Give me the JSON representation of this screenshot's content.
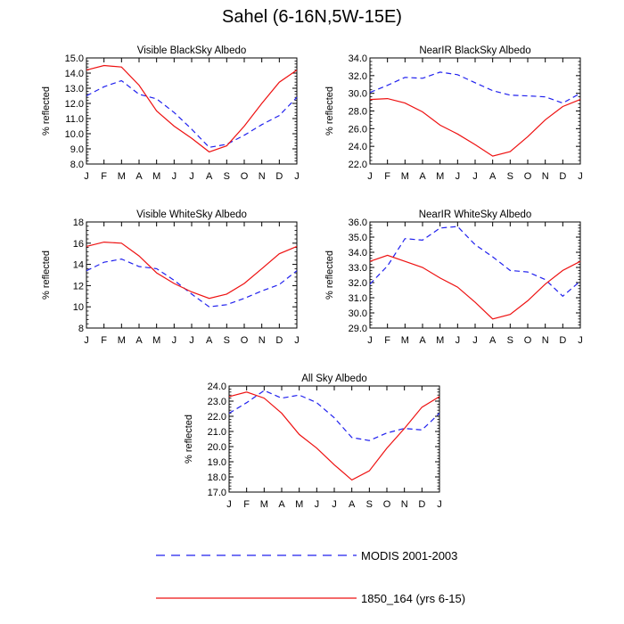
{
  "title": "Sahel (6-16N,5W-15E)",
  "colors": {
    "modis": "#2020ee",
    "model": "#ee1111"
  },
  "legend": {
    "modis_label": "MODIS 2001-2003",
    "model_label": "1850_164 (yrs 6-15)"
  },
  "chart_data": [
    {
      "type": "line",
      "title": "Visible BlackSky Albedo",
      "ylabel": "% reflected",
      "x": [
        "J",
        "F",
        "M",
        "A",
        "M",
        "J",
        "J",
        "A",
        "S",
        "O",
        "N",
        "D",
        "J"
      ],
      "ylim": [
        8.0,
        15.0
      ],
      "yticks": [
        "8.0",
        "9.0",
        "10.0",
        "11.0",
        "12.0",
        "13.0",
        "14.0",
        "15.0"
      ],
      "series": [
        {
          "name": "MODIS 2001-2003",
          "style": "dashed",
          "values": [
            12.5,
            13.1,
            13.5,
            12.6,
            12.3,
            11.4,
            10.3,
            9.1,
            9.3,
            9.9,
            10.6,
            11.2,
            12.4
          ]
        },
        {
          "name": "1850_164 (yrs 6-15)",
          "style": "solid",
          "values": [
            14.2,
            14.5,
            14.4,
            13.2,
            11.5,
            10.5,
            9.7,
            8.8,
            9.2,
            10.5,
            12.0,
            13.4,
            14.2
          ]
        }
      ]
    },
    {
      "type": "line",
      "title": "NearIR BlackSky Albedo",
      "ylabel": "% reflected",
      "x": [
        "J",
        "F",
        "M",
        "A",
        "M",
        "J",
        "J",
        "A",
        "S",
        "O",
        "N",
        "D",
        "J"
      ],
      "ylim": [
        22.0,
        34.0
      ],
      "yticks": [
        "22.0",
        "24.0",
        "26.0",
        "28.0",
        "30.0",
        "32.0",
        "34.0"
      ],
      "series": [
        {
          "name": "MODIS 2001-2003",
          "style": "dashed",
          "values": [
            30.1,
            30.9,
            31.8,
            31.7,
            32.4,
            32.1,
            31.2,
            30.3,
            29.8,
            29.7,
            29.6,
            28.9,
            30.0
          ]
        },
        {
          "name": "1850_164 (yrs 6-15)",
          "style": "solid",
          "values": [
            29.3,
            29.4,
            28.9,
            27.9,
            26.4,
            25.4,
            24.2,
            22.9,
            23.4,
            25.1,
            27.0,
            28.5,
            29.3
          ]
        }
      ]
    },
    {
      "type": "line",
      "title": "Visible WhiteSky Albedo",
      "ylabel": "% reflected",
      "x": [
        "J",
        "F",
        "M",
        "A",
        "M",
        "J",
        "J",
        "A",
        "S",
        "O",
        "N",
        "D",
        "J"
      ],
      "ylim": [
        8,
        18
      ],
      "yticks": [
        "8",
        "10",
        "12",
        "14",
        "16",
        "18"
      ],
      "series": [
        {
          "name": "MODIS 2001-2003",
          "style": "dashed",
          "values": [
            13.4,
            14.2,
            14.5,
            13.8,
            13.6,
            12.5,
            11.2,
            10.0,
            10.2,
            10.8,
            11.5,
            12.1,
            13.4
          ]
        },
        {
          "name": "1850_164 (yrs 6-15)",
          "style": "solid",
          "values": [
            15.7,
            16.1,
            16.0,
            14.8,
            13.2,
            12.2,
            11.4,
            10.8,
            11.2,
            12.2,
            13.6,
            15.0,
            15.7
          ]
        }
      ]
    },
    {
      "type": "line",
      "title": "NearIR WhiteSky Albedo",
      "ylabel": "% reflected",
      "x": [
        "J",
        "F",
        "M",
        "A",
        "M",
        "J",
        "J",
        "A",
        "S",
        "O",
        "N",
        "D",
        "J"
      ],
      "ylim": [
        29.0,
        36.0
      ],
      "yticks": [
        "29.0",
        "30.0",
        "31.0",
        "32.0",
        "33.0",
        "34.0",
        "35.0",
        "36.0"
      ],
      "series": [
        {
          "name": "MODIS 2001-2003",
          "style": "dashed",
          "values": [
            31.9,
            33.1,
            34.9,
            34.8,
            35.6,
            35.7,
            34.5,
            33.7,
            32.8,
            32.7,
            32.2,
            31.1,
            32.1
          ]
        },
        {
          "name": "1850_164 (yrs 6-15)",
          "style": "solid",
          "values": [
            33.4,
            33.8,
            33.4,
            33.0,
            32.3,
            31.7,
            30.7,
            29.6,
            29.9,
            30.8,
            31.9,
            32.8,
            33.4
          ]
        }
      ]
    },
    {
      "type": "line",
      "title": "All Sky Albedo",
      "ylabel": "% reflected",
      "x": [
        "J",
        "F",
        "M",
        "A",
        "M",
        "J",
        "J",
        "A",
        "S",
        "O",
        "N",
        "D",
        "J"
      ],
      "ylim": [
        17.0,
        24.0
      ],
      "yticks": [
        "17.0",
        "18.0",
        "19.0",
        "20.0",
        "21.0",
        "22.0",
        "23.0",
        "24.0"
      ],
      "series": [
        {
          "name": "MODIS 2001-2003",
          "style": "dashed",
          "values": [
            22.2,
            22.9,
            23.7,
            23.2,
            23.4,
            22.9,
            21.9,
            20.6,
            20.4,
            20.9,
            21.2,
            21.1,
            22.2
          ]
        },
        {
          "name": "1850_164 (yrs 6-15)",
          "style": "solid",
          "values": [
            23.3,
            23.6,
            23.2,
            22.2,
            20.8,
            19.9,
            18.8,
            17.8,
            18.4,
            19.9,
            21.2,
            22.6,
            23.3
          ]
        }
      ]
    }
  ]
}
